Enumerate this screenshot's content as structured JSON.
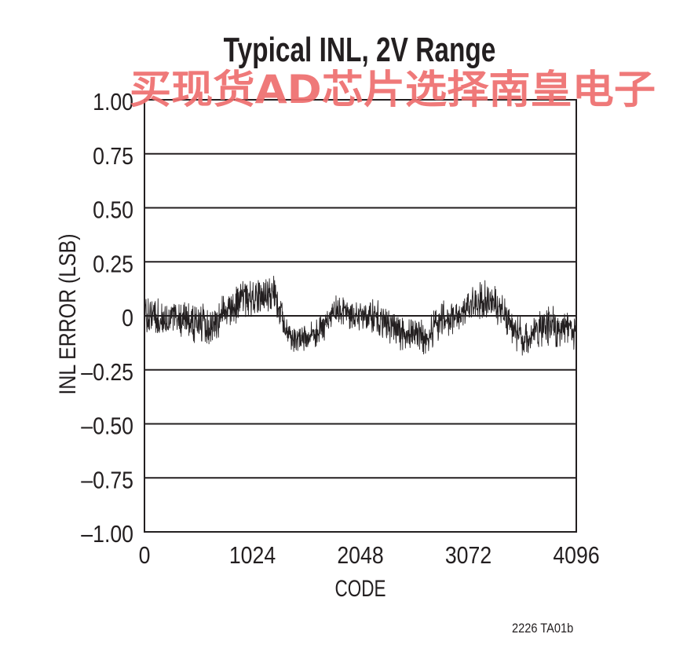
{
  "chart_data": {
    "type": "line",
    "title": "Typical INL, 2V Range",
    "xlabel": "CODE",
    "ylabel": "INL ERROR (LSB)",
    "xlim": [
      0,
      4096
    ],
    "ylim": [
      -1,
      1
    ],
    "x_ticks": [
      0,
      1024,
      2048,
      3072,
      4096
    ],
    "x_tick_labels": [
      "0",
      "1024",
      "2048",
      "3072",
      "4096"
    ],
    "y_ticks": [
      1,
      0.75,
      0.5,
      0.25,
      0,
      -0.25,
      -0.5,
      -0.75,
      -1
    ],
    "y_tick_labels": [
      "1.00",
      "0.75",
      "0.50",
      "0.25",
      "0",
      "–0.25",
      "–0.50",
      "–0.75",
      "–1.00"
    ],
    "grid": true,
    "series": [
      {
        "x": [
          0,
          128,
          256,
          384,
          512,
          640,
          768,
          896,
          1024,
          1152,
          1216,
          1280,
          1344,
          1408,
          1536,
          1664,
          1792,
          1920,
          2048,
          2176,
          2304,
          2432,
          2560,
          2688,
          2816,
          2944,
          3072,
          3200,
          3328,
          3456,
          3584,
          3712,
          3840,
          3968,
          4096
        ],
        "y_max": [
          0.1,
          0.08,
          0.08,
          0.09,
          0.07,
          0.05,
          0.12,
          0.16,
          0.18,
          0.17,
          0.2,
          0.17,
          0.0,
          -0.05,
          -0.04,
          0.0,
          0.1,
          0.09,
          0.08,
          0.08,
          0.05,
          0.0,
          -0.01,
          -0.02,
          0.09,
          0.08,
          0.13,
          0.17,
          0.15,
          0.05,
          0.0,
          0.02,
          0.05,
          0.04,
          0.03
        ],
        "y_min": [
          -0.1,
          -0.12,
          -0.11,
          -0.13,
          -0.15,
          -0.15,
          -0.06,
          -0.03,
          -0.02,
          0.0,
          0.02,
          -0.04,
          -0.13,
          -0.18,
          -0.17,
          -0.14,
          -0.06,
          -0.06,
          -0.08,
          -0.08,
          -0.13,
          -0.16,
          -0.17,
          -0.18,
          -0.1,
          -0.09,
          -0.04,
          -0.02,
          -0.03,
          -0.11,
          -0.21,
          -0.17,
          -0.15,
          -0.14,
          -0.16
        ]
      }
    ]
  },
  "figure_code": "2226 TA01b",
  "watermark": "买现货AD芯片选择南皇电子",
  "colors": {
    "trace": "#231f20",
    "axes": "#231f20",
    "watermark": "#ee6e6e",
    "background": "#ffffff"
  }
}
